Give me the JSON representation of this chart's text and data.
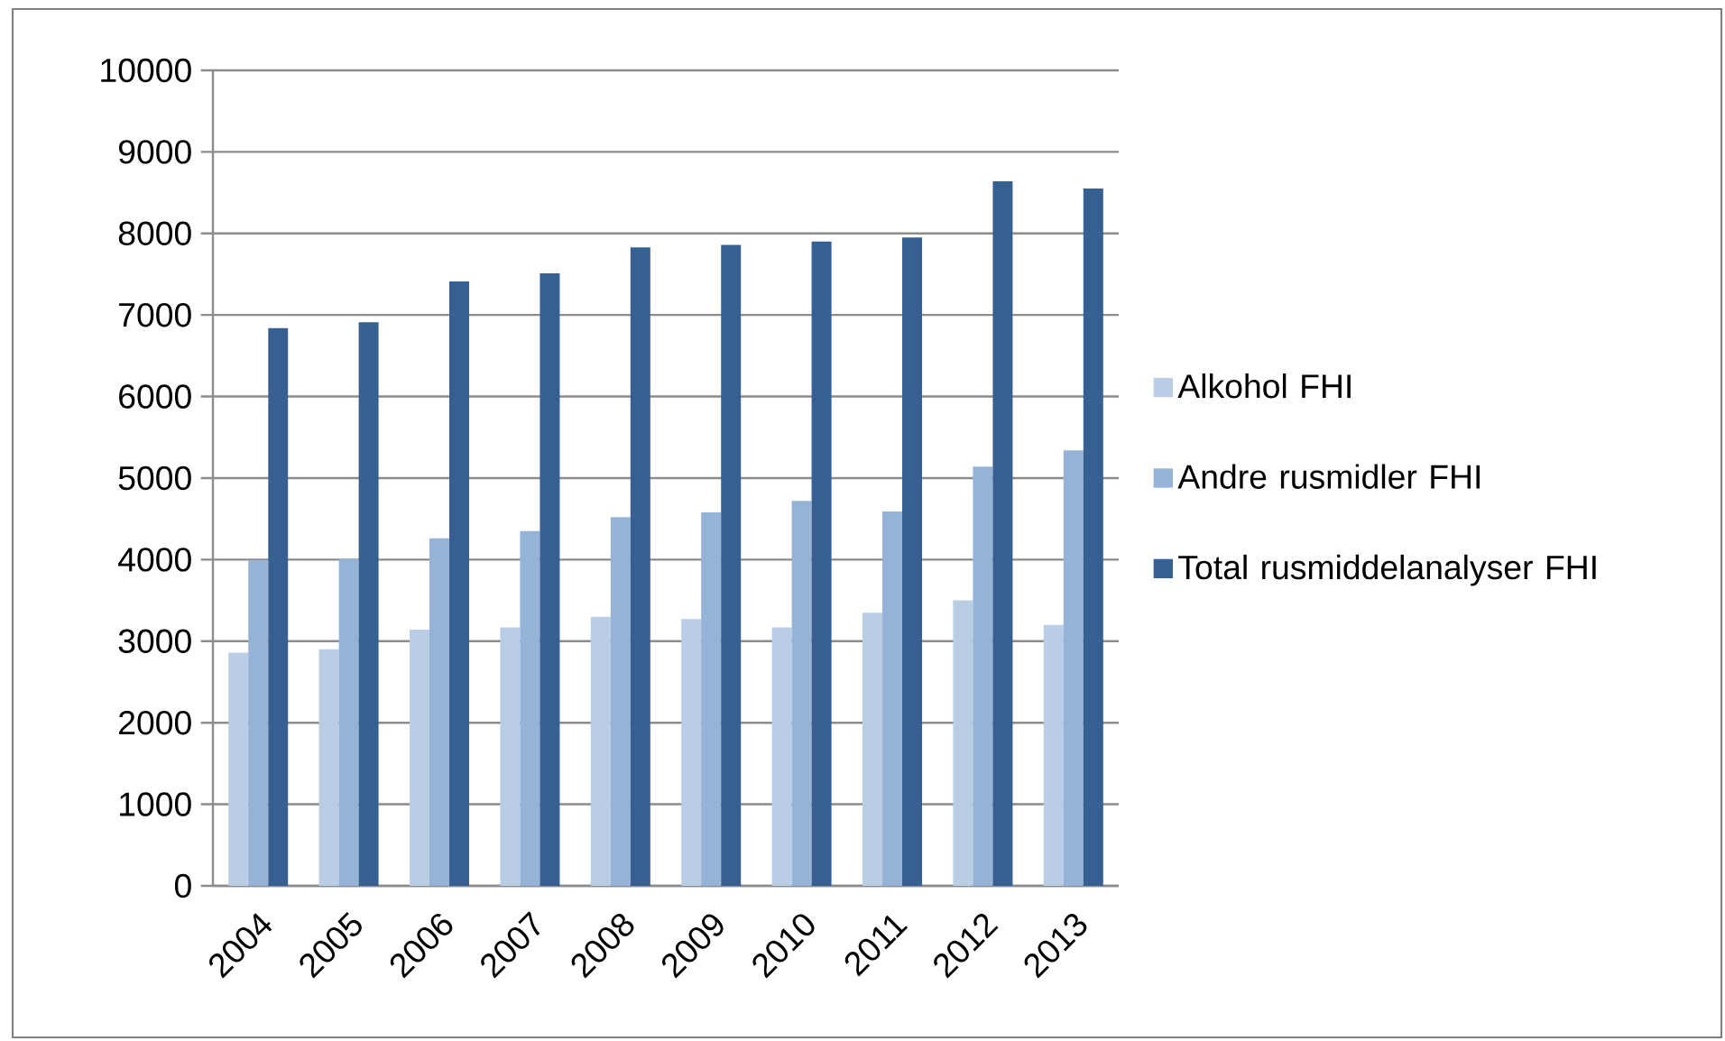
{
  "chart_data": {
    "type": "bar",
    "categories": [
      "2004",
      "2005",
      "2006",
      "2007",
      "2008",
      "2009",
      "2010",
      "2011",
      "2012",
      "2013"
    ],
    "series": [
      {
        "name": "Alkohol FHI",
        "color": "#b9cde5",
        "values": [
          2860,
          2900,
          3140,
          3170,
          3300,
          3270,
          3170,
          3350,
          3500,
          3200
        ]
      },
      {
        "name": "Andre rusmidler FHI",
        "color": "#95b3d7",
        "values": [
          3990,
          4010,
          4260,
          4350,
          4520,
          4580,
          4720,
          4590,
          5140,
          5340
        ]
      },
      {
        "name": "Total rusmiddelanalyser FHI",
        "color": "#376092",
        "values": [
          6840,
          6910,
          7410,
          7510,
          7830,
          7860,
          7900,
          7950,
          8640,
          8550
        ]
      }
    ],
    "ylim": [
      0,
      10000
    ],
    "yticks": [
      0,
      1000,
      2000,
      3000,
      4000,
      5000,
      6000,
      7000,
      8000,
      9000,
      10000
    ],
    "grid": "y",
    "legend": "right"
  }
}
